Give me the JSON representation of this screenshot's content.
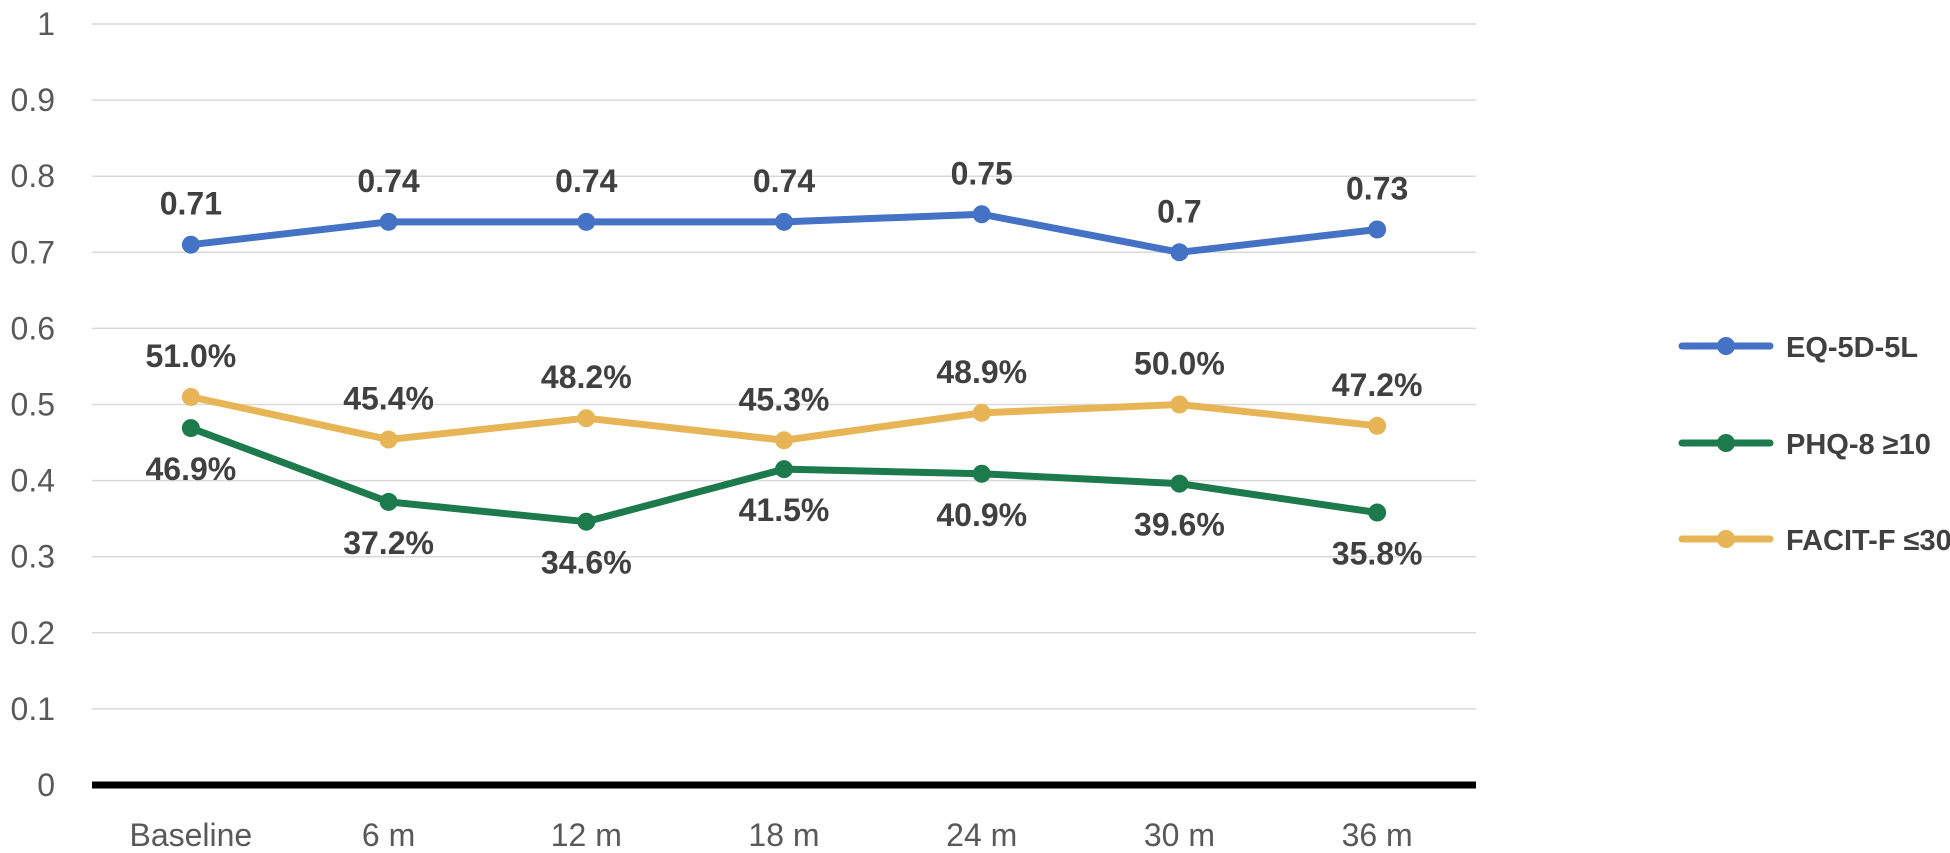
{
  "chart_data": {
    "type": "line",
    "title": "",
    "xlabel": "",
    "ylabel": "",
    "categories": [
      "Baseline",
      "6 m",
      "12 m",
      "18 m",
      "24 m",
      "30 m",
      "36 m"
    ],
    "ylim": [
      0,
      1
    ],
    "yticks": [
      "0",
      "0.1",
      "0.2",
      "0.3",
      "0.4",
      "0.5",
      "0.6",
      "0.7",
      "0.8",
      "0.9",
      "1"
    ],
    "grid": true,
    "legend_position": "right",
    "series": [
      {
        "name": "EQ-5D-5L",
        "color": "#4472c4",
        "values": [
          0.71,
          0.74,
          0.74,
          0.74,
          0.75,
          0.7,
          0.73
        ],
        "labels": [
          "0.71",
          "0.74",
          "0.74",
          "0.74",
          "0.75",
          "0.7",
          "0.73"
        ],
        "label_position": "above"
      },
      {
        "name": "PHQ-8 ≥10",
        "color": "#1d7a4c",
        "values": [
          0.469,
          0.372,
          0.346,
          0.415,
          0.409,
          0.396,
          0.358
        ],
        "labels": [
          "46.9%",
          "37.2%",
          "34.6%",
          "41.5%",
          "40.9%",
          "39.6%",
          "35.8%"
        ],
        "label_position": "below"
      },
      {
        "name": "FACIT-F ≤30",
        "color": "#e8b556",
        "values": [
          0.51,
          0.454,
          0.482,
          0.453,
          0.489,
          0.5,
          0.472
        ],
        "labels": [
          "51.0%",
          "45.4%",
          "48.2%",
          "45.3%",
          "48.9%",
          "50.0%",
          "47.2%"
        ],
        "label_position": "above"
      }
    ]
  }
}
